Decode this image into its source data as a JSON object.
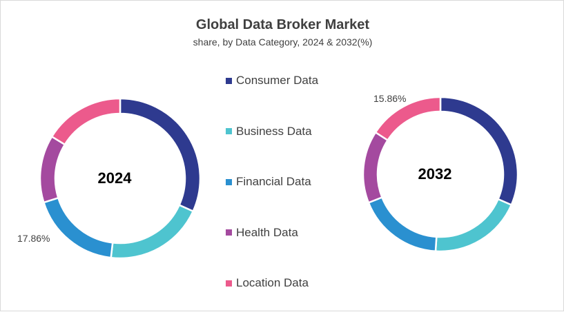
{
  "chart_data": {
    "type": "pie",
    "title": "Global Data Broker Market",
    "subtitle": "share, by Data Category, 2024 & 2032(%)",
    "legend_position": "center",
    "categories": [
      "Consumer Data",
      "Business Data",
      "Financial Data",
      "Health Data",
      "Location Data"
    ],
    "colors": [
      "#2e3a8f",
      "#4ec4cf",
      "#2a90d0",
      "#a44a9f",
      "#ec5a8c"
    ],
    "charts": [
      {
        "center_label": "2024",
        "values": [
          31.0,
          19.6,
          17.86,
          13.3,
          15.86
        ],
        "value_labels": [
          "",
          "",
          "17.86%",
          "",
          ""
        ]
      },
      {
        "center_label": "2032",
        "values": [
          31.5,
          19.5,
          18.0,
          15.14,
          15.86
        ],
        "value_labels": [
          "",
          "",
          "",
          "",
          "15.86%"
        ]
      }
    ]
  }
}
